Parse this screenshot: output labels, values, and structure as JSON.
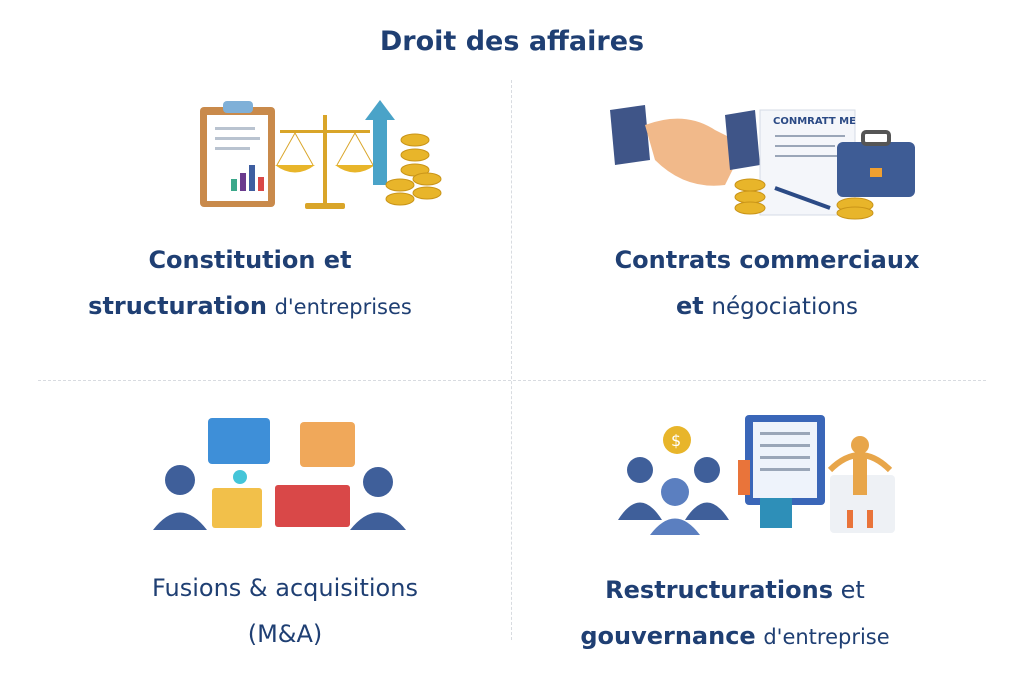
{
  "title": "Droit des affaires",
  "quadrants": [
    {
      "line1_bold": "Constitution et",
      "line2_bold": "structuration",
      "line2_light": "d'entreprises",
      "icon": "clipboard-scales-coins-icon"
    },
    {
      "line1_bold": "Contrats commerciaux",
      "line2_bold": "et",
      "line2_light": "négociations",
      "icon": "handshake-contract-briefcase-icon",
      "contract_heading": "CONMRATT ME"
    },
    {
      "line1_bold": "Fusions & acquisitions",
      "line2_bold": "(M&A)",
      "line2_light": "",
      "icon": "people-puzzle-icon"
    },
    {
      "line1_bold": "Restructurations",
      "line1_light": "et",
      "line2_bold": "gouvernance",
      "line2_light": "d'entreprise",
      "icon": "team-dashboard-governance-icon"
    }
  ],
  "colors": {
    "text": "#1f3f73",
    "gold": "#e8b52a",
    "blue": "#3f5f9a",
    "divider": "#d8dbe0"
  }
}
